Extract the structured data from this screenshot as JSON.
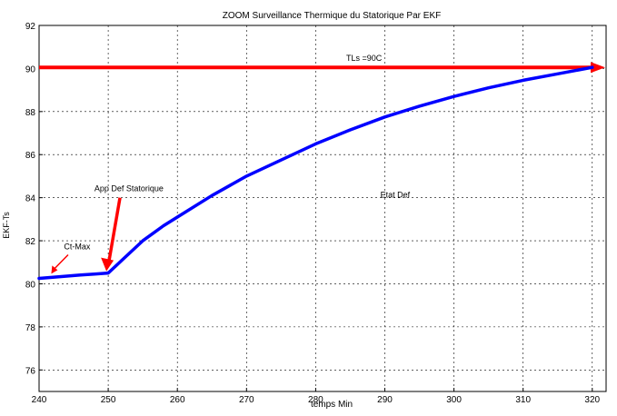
{
  "chart_data": {
    "type": "line",
    "title": "ZOOM Surveillance Thermique du Statorique Par EKF",
    "xlabel": "temps Min",
    "ylabel": "EKF-Ts",
    "xlim": [
      240,
      322
    ],
    "ylim": [
      75,
      92
    ],
    "xticks": [
      240,
      250,
      260,
      270,
      280,
      290,
      300,
      310,
      320
    ],
    "yticks": [
      76,
      78,
      80,
      82,
      84,
      86,
      88,
      90,
      92
    ],
    "grid": true,
    "series": [
      {
        "color": "#0000ff",
        "x": [
          240,
          243,
          246,
          248,
          250,
          252,
          255,
          258,
          260,
          265,
          270,
          275,
          280,
          285,
          290,
          295,
          300,
          305,
          310,
          315,
          320
        ],
        "y": [
          80.25,
          80.33,
          80.41,
          80.45,
          80.5,
          81.1,
          82.0,
          82.7,
          83.1,
          84.1,
          85.0,
          85.75,
          86.5,
          87.15,
          87.75,
          88.25,
          88.7,
          89.1,
          89.45,
          89.75,
          90.05
        ]
      }
    ],
    "threshold": {
      "label": "TLs =90C",
      "y": 90.05,
      "x_from": 240,
      "x_to": 322,
      "color": "#ff0000"
    },
    "annotations": [
      {
        "label": "Ct-Max",
        "arrow_to": [
          241.5,
          80.3
        ],
        "label_at": [
          245.5,
          81.6
        ],
        "color": "#ff0000"
      },
      {
        "label": "App Def Statorique",
        "arrow_to": [
          250,
          80.5
        ],
        "label_at": [
          253,
          84.3
        ]
      },
      {
        "label": "Etat Def",
        "label_at": [
          291.5,
          84.0
        ]
      }
    ]
  }
}
